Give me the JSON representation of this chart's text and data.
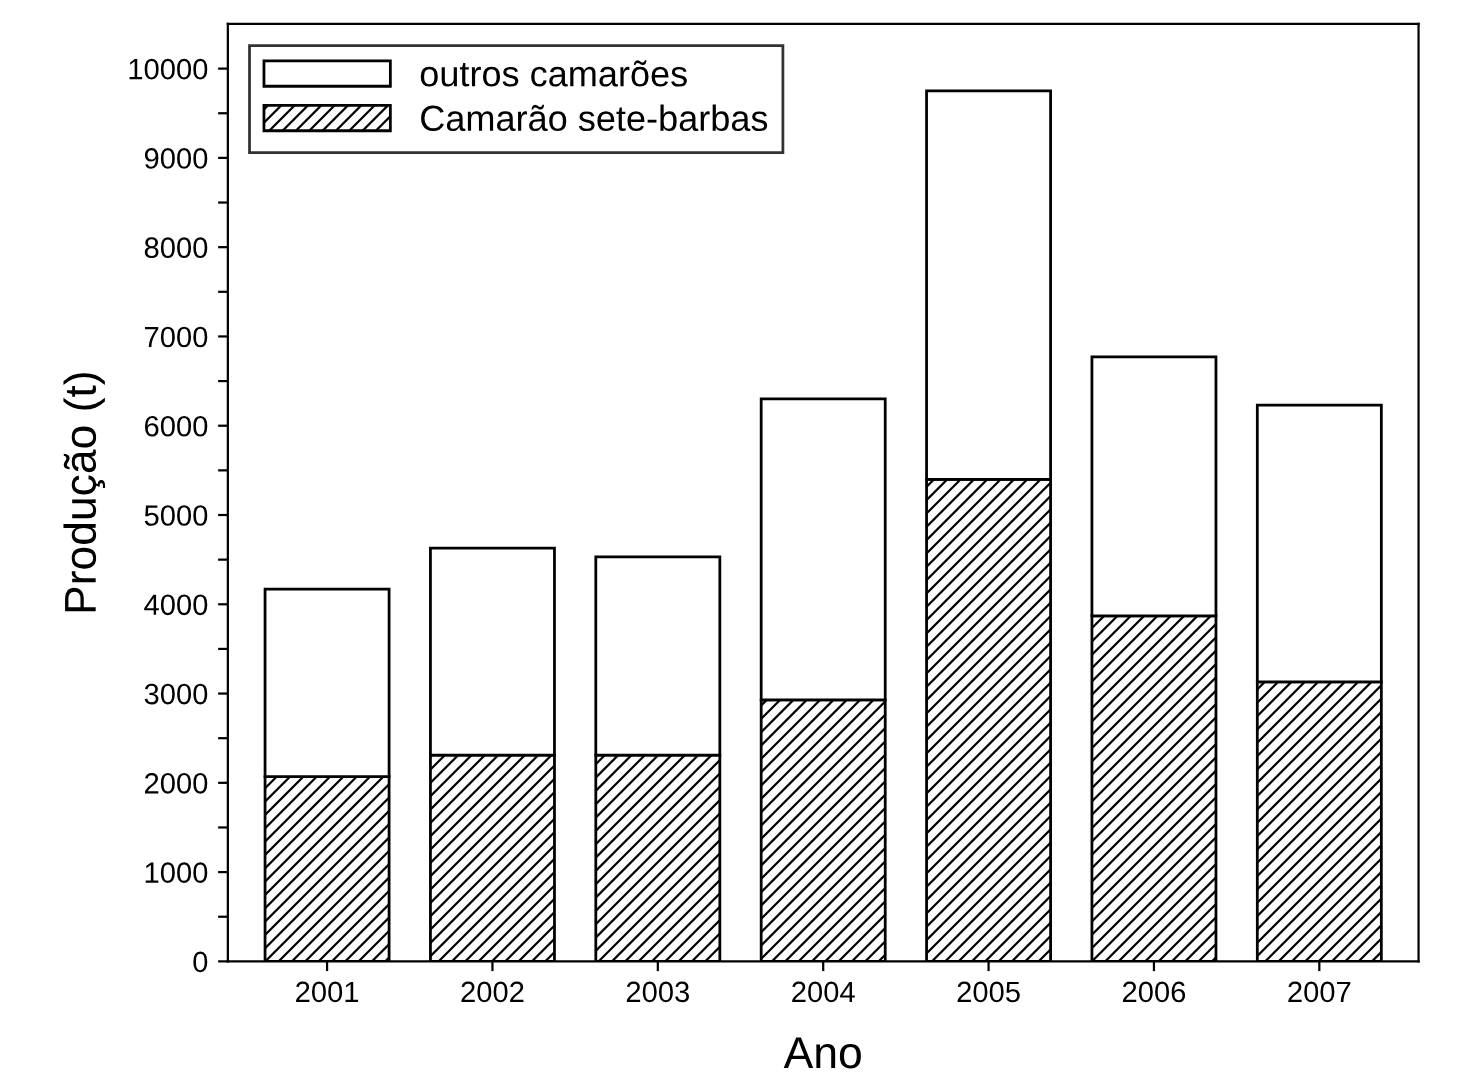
{
  "chart_data": {
    "type": "bar",
    "stacked": true,
    "xlabel": "Ano",
    "ylabel": "Produção (t)",
    "categories": [
      "2001",
      "2002",
      "2003",
      "2004",
      "2005",
      "2006",
      "2007"
    ],
    "series": [
      {
        "name": "Camarão sete-barbas",
        "color": "#000000",
        "values": [
          2070,
          2310,
          2310,
          2930,
          5400,
          3870,
          3130
        ]
      },
      {
        "name": "outros camarões",
        "color": "#ffffff",
        "values": [
          2100,
          2320,
          2220,
          3370,
          4350,
          2900,
          3100
        ]
      }
    ],
    "ylim": [
      0,
      10500
    ],
    "yticks": [
      0,
      {
        "value": 500,
        "label": null
      },
      1000,
      {
        "value": 1500,
        "label": null
      },
      2000,
      {
        "value": 2500,
        "label": null
      },
      3000,
      {
        "value": 3500,
        "label": null
      },
      4000,
      {
        "value": 4500,
        "label": null
      },
      5000,
      {
        "value": 5500,
        "label": null
      },
      6000,
      {
        "value": 6500,
        "label": null
      },
      7000,
      {
        "value": 7500,
        "label": null
      },
      8000,
      {
        "value": 8500,
        "label": null
      },
      9000,
      {
        "value": 9500,
        "label": null
      },
      10000
    ],
    "grid": false,
    "legend": "top left"
  }
}
